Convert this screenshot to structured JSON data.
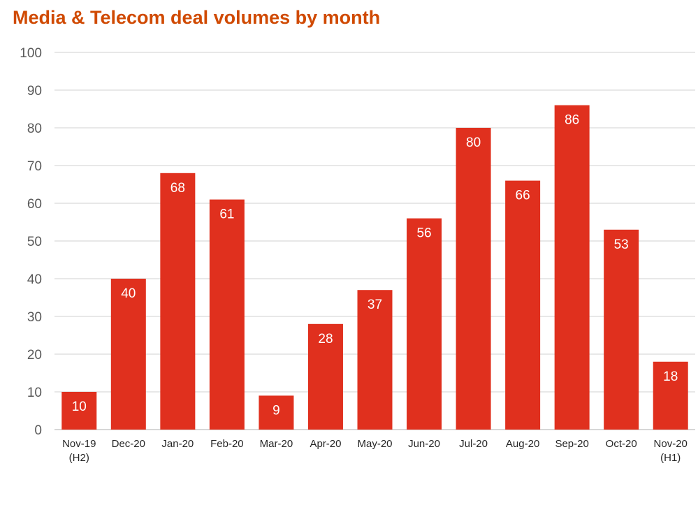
{
  "chart_data": {
    "type": "bar",
    "title": "Media & Telecom deal volumes by month",
    "xlabel": "",
    "ylabel": "",
    "categories": [
      [
        "Nov-19",
        "(H2)"
      ],
      [
        "Dec-20"
      ],
      [
        "Jan-20"
      ],
      [
        "Feb-20"
      ],
      [
        "Mar-20"
      ],
      [
        "Apr-20"
      ],
      [
        "May-20"
      ],
      [
        "Jun-20"
      ],
      [
        "Jul-20"
      ],
      [
        "Aug-20"
      ],
      [
        "Sep-20"
      ],
      [
        "Oct-20"
      ],
      [
        "Nov-20",
        "(H1)"
      ]
    ],
    "values": [
      10,
      40,
      68,
      61,
      9,
      28,
      37,
      56,
      80,
      66,
      86,
      53,
      18
    ],
    "ylim": [
      0,
      100
    ],
    "yticks": [
      0,
      10,
      20,
      30,
      40,
      50,
      60,
      70,
      80,
      90,
      100
    ],
    "grid": true,
    "legend": "none",
    "colors": {
      "bar": "#E0301E",
      "title": "#D04A02",
      "grid": "#D9D9D9",
      "axis_text": "#595959",
      "label": "#FFFFFF"
    }
  }
}
